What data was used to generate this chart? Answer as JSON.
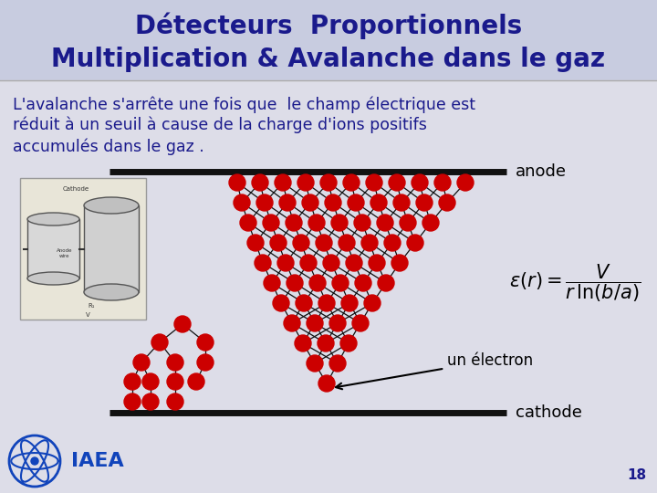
{
  "title_line1": "Détecteurs  Proportionnels",
  "title_line2": "Multiplication & Avalanche dans le gaz",
  "title_color": "#1a1a8c",
  "title_fontsize": 20,
  "body_text_line1": "L'avalanche s'arrête une fois que  le champ électrique est",
  "body_text_line2": "réduit à un seuil à cause de la charge d'ions positifs",
  "body_text_line3": "accumulés dans le gaz .",
  "body_fontsize": 12.5,
  "body_color": "#1a1a8c",
  "anode_label": "anode",
  "cathode_label": "cathode",
  "electron_label": "un électron",
  "page_number": "18",
  "bg_color_top": "#c8cce0",
  "bg_color_bottom": "#dddde8",
  "ball_color": "#cc0000",
  "line_color": "#111111",
  "bar_color": "#111111",
  "iaea_color": "#1144bb"
}
